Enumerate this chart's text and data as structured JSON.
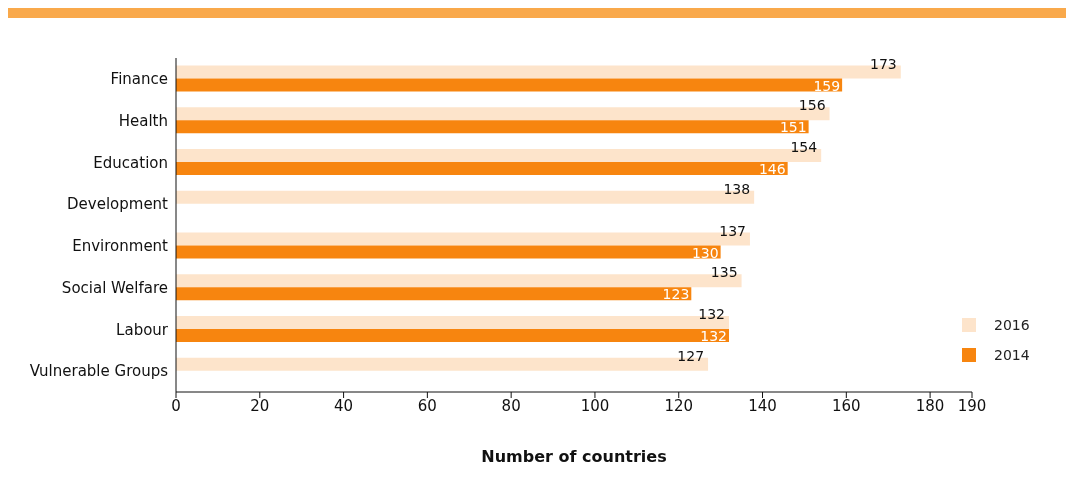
{
  "chart_data": {
    "type": "bar",
    "orientation": "horizontal",
    "xlabel": "Number of countries",
    "categories": [
      "Finance",
      "Health",
      "Education",
      "Development",
      "Environment",
      "Social Welfare",
      "Labour",
      "Vulnerable Groups"
    ],
    "series": [
      {
        "name": "2016",
        "color": "#fde4cb",
        "values": [
          173,
          156,
          154,
          138,
          137,
          135,
          132,
          127
        ]
      },
      {
        "name": "2014",
        "color": "#f7850f",
        "values": [
          159,
          151,
          146,
          null,
          130,
          123,
          132,
          null
        ]
      }
    ],
    "xlim": [
      0,
      190
    ],
    "xticks": [
      0,
      20,
      40,
      60,
      80,
      100,
      120,
      140,
      160,
      180,
      190
    ],
    "data_labels": true,
    "grid": false,
    "legend": "bottom right"
  }
}
